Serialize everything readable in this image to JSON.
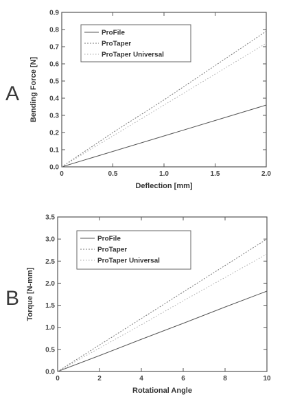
{
  "chart_data": [
    {
      "panel": "A",
      "type": "line",
      "xlabel": "Deflection [mm]",
      "ylabel": "Bending Force [N]",
      "xlim": [
        0,
        2.0
      ],
      "ylim": [
        0,
        0.9
      ],
      "xticks": [
        "0",
        "0.5",
        "1.0",
        "1.5",
        "2.0"
      ],
      "yticks": [
        "0.0",
        "0.1",
        "0.2",
        "0.3",
        "0.4",
        "0.5",
        "0.6",
        "0.7",
        "0.8",
        "0.9"
      ],
      "grid": false,
      "legend_position": "top-left",
      "series": [
        {
          "name": "ProFile",
          "x": [
            0,
            0.5,
            1.0,
            1.5,
            2.0
          ],
          "y": [
            0,
            0.09,
            0.18,
            0.27,
            0.36
          ],
          "style": "solid",
          "color": "#555555"
        },
        {
          "name": "ProTaper",
          "x": [
            0,
            0.5,
            1.0,
            1.5,
            2.0
          ],
          "y": [
            0,
            0.2,
            0.39,
            0.59,
            0.79
          ],
          "style": "dotted",
          "color": "#777777"
        },
        {
          "name": "ProTaper Universal",
          "x": [
            0,
            0.5,
            1.0,
            1.5,
            2.0
          ],
          "y": [
            0,
            0.18,
            0.36,
            0.54,
            0.72
          ],
          "style": "dotted-light",
          "color": "#aaaaaa"
        }
      ]
    },
    {
      "panel": "B",
      "type": "line",
      "xlabel": "Rotational Angle",
      "ylabel": "Torque [N-mm]",
      "xlim": [
        0,
        10
      ],
      "ylim": [
        0,
        3.5
      ],
      "xticks": [
        "0",
        "2",
        "4",
        "6",
        "8",
        "10"
      ],
      "yticks": [
        "0.0",
        "0.5",
        "1.0",
        "1.5",
        "2.0",
        "2.5",
        "3.0",
        "3.5"
      ],
      "grid": false,
      "legend_position": "top-left",
      "series": [
        {
          "name": "ProFile",
          "x": [
            0,
            2,
            4,
            6,
            8,
            10
          ],
          "y": [
            0,
            0.36,
            0.73,
            1.09,
            1.46,
            1.82
          ],
          "style": "solid",
          "color": "#555555"
        },
        {
          "name": "ProTaper",
          "x": [
            0,
            2,
            4,
            6,
            8,
            10
          ],
          "y": [
            0,
            0.6,
            1.2,
            1.8,
            2.4,
            3.0
          ],
          "style": "dotted",
          "color": "#777777"
        },
        {
          "name": "ProTaper Universal",
          "x": [
            0,
            2,
            4,
            6,
            8,
            10
          ],
          "y": [
            0,
            0.53,
            1.06,
            1.6,
            2.13,
            2.66
          ],
          "style": "dotted-light",
          "color": "#aaaaaa"
        }
      ]
    }
  ]
}
